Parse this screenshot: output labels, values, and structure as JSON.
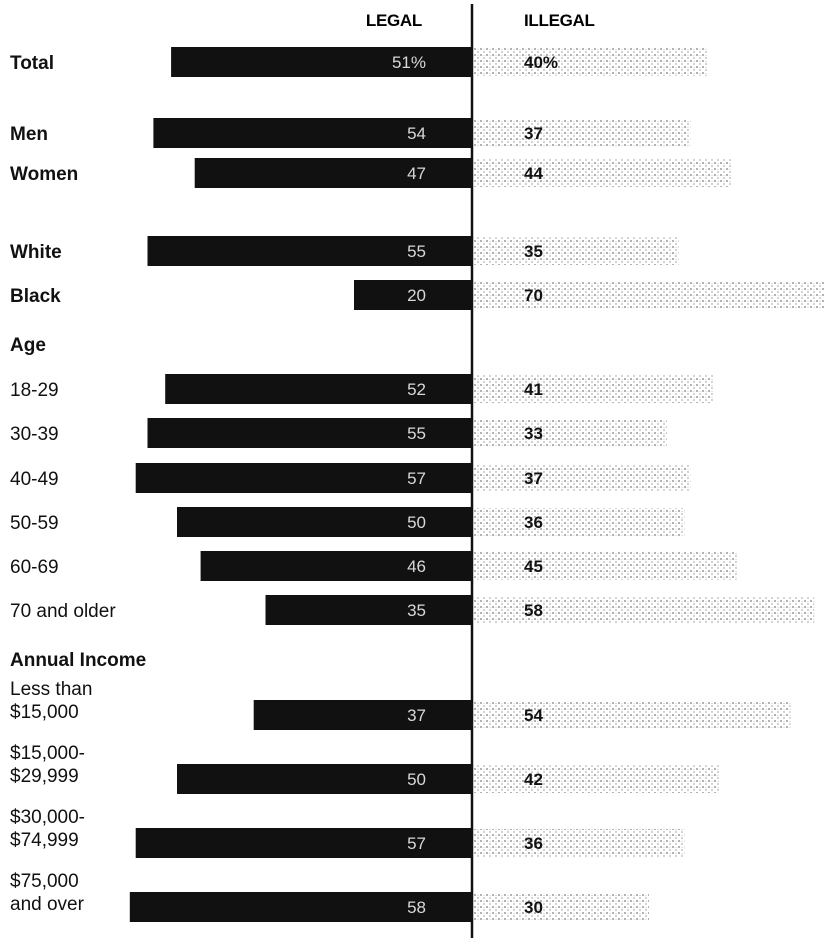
{
  "chart_data": {
    "type": "bar",
    "layout": "diverging-horizontal",
    "series": [
      {
        "name": "LEGAL",
        "color": "#111111"
      },
      {
        "name": "ILLEGAL",
        "color": "#b8b8b8",
        "pattern": "stipple"
      }
    ],
    "rows": [
      {
        "label": "Total",
        "legal": 51,
        "illegal": 40,
        "legal_text": "51%",
        "illegal_text": "40%",
        "bold": true,
        "group_gap_before": false
      },
      {
        "label": "Men",
        "legal": 54,
        "illegal": 37,
        "legal_text": "54",
        "illegal_text": "37",
        "bold": true,
        "group_gap_before": true
      },
      {
        "label": "Women",
        "legal": 47,
        "illegal": 44,
        "legal_text": "47",
        "illegal_text": "44",
        "bold": true,
        "group_gap_before": false
      },
      {
        "label": "White",
        "legal": 55,
        "illegal": 35,
        "legal_text": "55",
        "illegal_text": "35",
        "bold": true,
        "group_gap_before": true
      },
      {
        "label": "Black",
        "legal": 20,
        "illegal": 70,
        "legal_text": "20",
        "illegal_text": "70",
        "bold": true,
        "group_gap_before": false
      },
      {
        "label": "Age",
        "heading": true,
        "bold": true
      },
      {
        "label": "18-29",
        "legal": 52,
        "illegal": 41,
        "legal_text": "52",
        "illegal_text": "41",
        "bold": false
      },
      {
        "label": "30-39",
        "legal": 55,
        "illegal": 33,
        "legal_text": "55",
        "illegal_text": "33",
        "bold": false
      },
      {
        "label": "40-49",
        "legal": 57,
        "illegal": 37,
        "legal_text": "57",
        "illegal_text": "37",
        "bold": false
      },
      {
        "label": "50-59",
        "legal": 50,
        "illegal": 36,
        "legal_text": "50",
        "illegal_text": "36",
        "bold": false
      },
      {
        "label": "60-69",
        "legal": 46,
        "illegal": 45,
        "legal_text": "46",
        "illegal_text": "45",
        "bold": false
      },
      {
        "label": "70 and older",
        "legal": 35,
        "illegal": 58,
        "legal_text": "35",
        "illegal_text": "58",
        "bold": false
      },
      {
        "label": "Annual Income",
        "heading": true,
        "bold": true
      },
      {
        "label": [
          "Less than",
          "$15,000"
        ],
        "legal": 37,
        "illegal": 54,
        "legal_text": "37",
        "illegal_text": "54",
        "bold": false
      },
      {
        "label": [
          "$15,000-",
          "$29,999"
        ],
        "legal": 50,
        "illegal": 42,
        "legal_text": "50",
        "illegal_text": "42",
        "bold": false
      },
      {
        "label": [
          "$30,000-",
          "$74,999"
        ],
        "legal": 57,
        "illegal": 36,
        "legal_text": "57",
        "illegal_text": "36",
        "bold": false
      },
      {
        "label": [
          "$75,000",
          "and over"
        ],
        "legal": 58,
        "illegal": 30,
        "legal_text": "58",
        "illegal_text": "30",
        "bold": false
      }
    ],
    "value_range": [
      0,
      60
    ],
    "grid": false,
    "legend": "top-center"
  }
}
